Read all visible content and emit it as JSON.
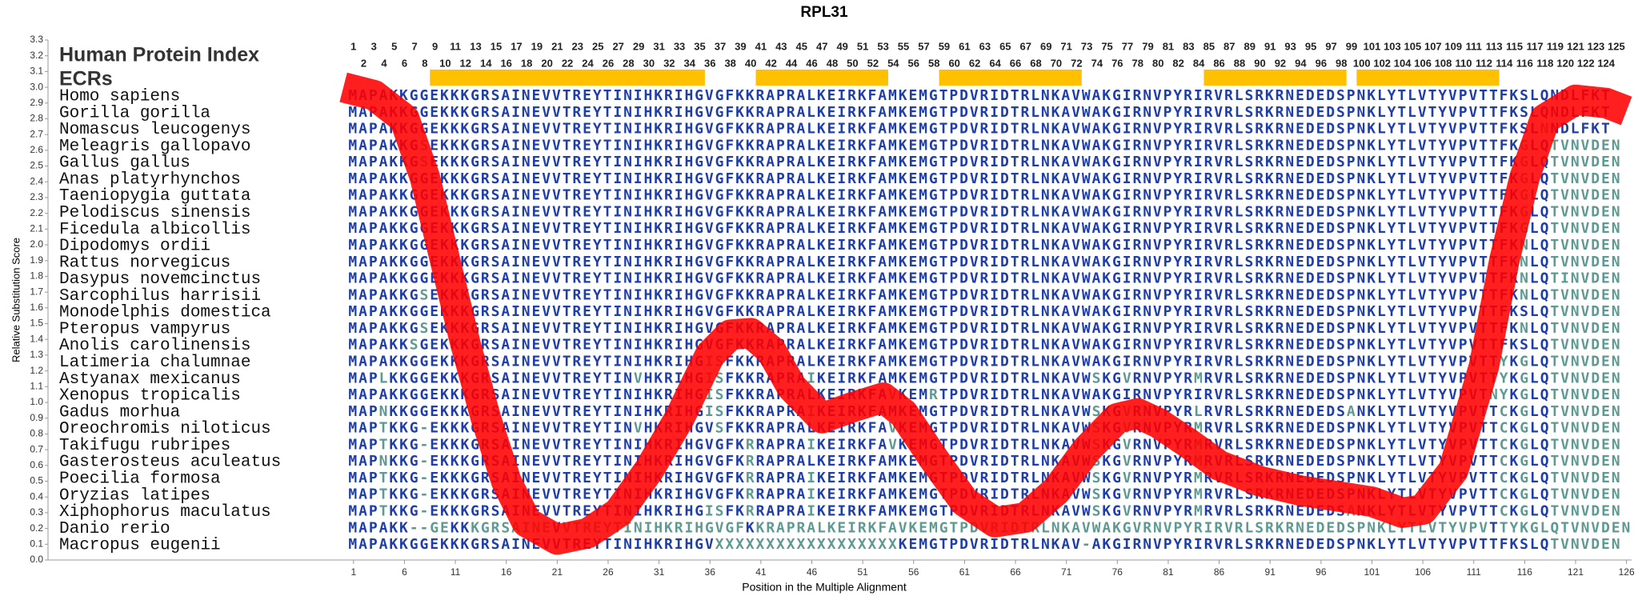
{
  "chart_data": {
    "type": "line",
    "title": "RPL31",
    "xlabel": "Position in the Multiple Alignment",
    "ylabel": "Relative Substitution Score",
    "color": "#ff0000",
    "x": [
      0,
      3,
      6,
      8,
      10,
      12,
      14,
      16,
      18,
      21,
      24,
      27,
      30,
      33,
      36,
      38,
      40,
      42,
      44,
      47,
      50,
      53,
      55,
      58,
      61,
      64,
      67,
      70,
      73,
      76,
      78,
      80,
      83,
      86,
      90,
      94,
      98,
      101,
      104,
      106,
      109,
      112,
      114,
      116,
      118,
      121,
      124,
      126
    ],
    "values": [
      3.0,
      2.95,
      2.8,
      2.43,
      1.9,
      1.37,
      0.9,
      0.5,
      0.24,
      0.13,
      0.17,
      0.3,
      0.57,
      0.9,
      1.3,
      1.43,
      1.44,
      1.33,
      1.1,
      0.9,
      0.97,
      1.03,
      0.93,
      0.64,
      0.37,
      0.24,
      0.27,
      0.44,
      0.7,
      0.9,
      0.93,
      0.87,
      0.74,
      0.6,
      0.5,
      0.44,
      0.4,
      0.37,
      0.3,
      0.32,
      0.57,
      1.23,
      1.9,
      2.43,
      2.8,
      2.92,
      2.9,
      2.85
    ],
    "xlim": [
      -29,
      126.5
    ],
    "ylim": [
      0,
      3.3
    ],
    "xticks": [
      1,
      6,
      11,
      16,
      21,
      26,
      31,
      36,
      41,
      46,
      51,
      56,
      61,
      66,
      71,
      76,
      81,
      86,
      91,
      96,
      101,
      106,
      111,
      116,
      121,
      126
    ],
    "yticks": [
      {
        "value": 0,
        "label": "0.0"
      },
      0.1,
      0.2,
      0.3,
      0.4,
      0.5,
      0.6,
      0.7,
      0.8,
      0.9,
      {
        "value": 1,
        "label": "1.0"
      },
      1.1,
      1.2,
      1.3,
      1.4,
      1.5,
      1.6,
      1.7,
      1.8,
      1.9,
      {
        "value": 2,
        "label": "2.0"
      },
      2.1,
      2.2,
      2.3,
      2.4,
      2.5,
      2.6,
      2.7,
      2.8,
      2.9,
      {
        "value": 3,
        "label": "3.0"
      },
      3.1,
      3.2,
      3.3
    ],
    "protein_index_label": "Human Protein Index",
    "protein_index": [
      1,
      2,
      3,
      4,
      5,
      6,
      7,
      8,
      9,
      10,
      11,
      12,
      13,
      14,
      15,
      16,
      17,
      18,
      19,
      20,
      21,
      22,
      23,
      24,
      25,
      26,
      27,
      28,
      29,
      30,
      31,
      32,
      33,
      34,
      35,
      36,
      37,
      38,
      39,
      40,
      41,
      42,
      43,
      44,
      45,
      46,
      47,
      48,
      49,
      50,
      51,
      52,
      53,
      54,
      55,
      56,
      57,
      58,
      59,
      60,
      61,
      62,
      63,
      64,
      65,
      66,
      67,
      68,
      69,
      70,
      71,
      72,
      73,
      74,
      75,
      76,
      77,
      78,
      79,
      80,
      81,
      82,
      83,
      84,
      85,
      86,
      87,
      88,
      89,
      90,
      91,
      92,
      93,
      94,
      95,
      96,
      97,
      98,
      99,
      100,
      101,
      102,
      103,
      104,
      105,
      106,
      107,
      108,
      109,
      110,
      111,
      112,
      113,
      114,
      115,
      116,
      117,
      118,
      119,
      120,
      121,
      122,
      123,
      124,
      125
    ],
    "ecr_label": "ECRs",
    "ecr_color": "#ffc000",
    "ecrs": [
      [
        9,
        35
      ],
      [
        41,
        53
      ],
      [
        59,
        72
      ],
      [
        85,
        98
      ],
      [
        100,
        113
      ]
    ],
    "species": [
      "Homo sapiens",
      "Gorilla gorilla",
      "Nomascus leucogenys",
      "Meleagris gallopavo",
      "Gallus gallus",
      "Anas platyrhynchos",
      "Taeniopygia guttata",
      "Pelodiscus sinensis",
      "Ficedula albicollis",
      "Dipodomys ordii",
      "Rattus norvegicus",
      "Dasypus novemcinctus",
      "Sarcophilus harrisii",
      "Monodelphis domestica",
      "Pteropus vampyrus",
      "Anolis carolinensis",
      "Latimeria chalumnae",
      "Astyanax mexicanus",
      "Xenopus tropicalis",
      "Gadus morhua",
      "Oreochromis niloticus",
      "Takifugu rubripes",
      "Gasterosteus aculeatus",
      "Poecilia formosa",
      "Oryzias latipes",
      "Xiphophorus maculatus",
      "Danio rerio",
      "Macropus eugenii"
    ],
    "alignment": [
      "MAPAKKGGEKKKGRSAINEVVTREYTINIHKRIHGVGFKKRAPRALKEIRKFAMKEMGTPDVRIDTRLNKAVWAKGIRNVPYRIRVRLSRKRNEDEDSPNKLYTLVTYVPVTTFKSLQNDLFKT",
      "MAPAKKGGEKKKGRSAINEVVTREYTINIHKRIHGVGFKKRAPRALKEIRKFAMKEMGTPDVRIDTRLNKAVWAKGIRNVPYRIRVRLSRKRNEDEDSPNKLYTLVTYVPVTTFKSLQNDLFKT",
      "MAPAKKGGEKKKGRSAINEVVTREYTINIHKRIHGVGFKKRAPRALKEIRKFAMKEMGTPDVRIDTRLNKAVWAKGIRNVPYRIRVRLSRKRNEDEDSPNKLYTLVTYVPVTTFKSLNNDLFKT",
      "MAPAKKGSEKKKGRSAINEVVTREYTINIHKRIHGVGFKKRAPRALKEIRKFAMKEMGTPDVRIDTRLNKAVWAKGIRNVPYRIRVRLSRKRNEDEDSPNKLYTLVTYVPVTTFKGLQTVNVDEN",
      "MAPAKKGSEKKKGRSAINEVVTREYTINIHKRIHGVGFKKRAPRALKEIRKFAMKEMGTPDVRIDTRLNKAVWAKGIRNVPYRIRVRLSRKRNEDEDSPNKLYTLVTYVPVTTFKGLQTVNVDEN",
      "MAPAKKGGEKKKGRSAINEVVTREYTINIHKRIHGVGFKKRAPRALKEIRKFAMKEMGTPDVRIDTRLNKAVWAKGIRNVPYRIRVRLSRKRNEDEDSPNKLYTLVTYVPVTTFKGLQTVNVDEN",
      "MAPAKKGGEKKKGRSAINEVVTREYTINIHKRIHGVGFKKRAPRALKEIRKFAMKEMGTPDVRIDTRLNKAVWAKGIRNVPYRIRVRLSRKRNEDEDSPNKLYTLVTYVPVTTFKGLQTVNVDEN",
      "MAPAKKGGEKKKGRSAINEVVTREYTINIHKRIHGVGFKKRAPRALKEIRKFAMKEMGTPDVRIDTRLNKAVWAKGIRNVPYRIRVRLSRKRNEDEDSPNKLYTLVTYVPVTTFKGLQTVNVDEN",
      "MAPAKKGGEKKKGRSAINEVVTREYTINIHKRIHGVGFKKRAPRALKEIRKFAMKEMGTPDVRIDTRLNKAVWAKGIRNVPYRIRVRLSRKRNEDEDSPNKLYTLVTYVPVTTFKGLQTVNVDEN",
      "MAPAKKGGEKKKGRSAINEVVTREYTINIHKRIHGVGFKKRAPRALKEIRKFAMKEMGTPDVRIDTRLNKAVWAKGIRNVPYRIRVRLSRKRNEDEDSPNKLYTLVTYVPVTTFKNLQTVNVDEN",
      "MAPAKKGGEKKKGRSAINEVVTREYTINIHKRIHGVGFKKRAPRALKEIRKFAMKEMGTPDVRIDTRLNKAVWAKGIRNVPYRIRVRLSRKRNEDEDSPNKLYTLVTYVPVTTFKNLQTVNVDEN",
      "MAPAKKGGEKKKGRSAINEVVTREYTINIHKRIHGVGFKKRAPRALKEIRKFAMKEMGTPDVRIDTRLNKAVWAKGIRNVPYRIRVRLSRKRNEDEDSPNKLYTLVTYVPVTTFKNLQTINVDEN",
      "MAPAKKGSEKKKGRSAINEVVTREYTINIHKRIHGVGFKKRAPRALKEIRKFAMKEMGTPDVRIDTRLNKAVWAKGIRNVPYRIRVRLSRKRNEDEDSPNKLYTLVTYVPVTTFKNLQTVNVDEN",
      "MAPAKKGGEKKKGRSAINEVVTREYTINIHKRIHGVGFKKRAPRALKEIRKFAMKEMGTPDVRIDTRLNKAVWAKGIRNVPYRIRVRLSRKRNEDEDSPNKLYTLVTYVPVTTFKSLQTVNVDEN",
      "MAPAKKGSEKKKGRSAINEVVTREYTINIHKRIHGVGFKKRAPRALKEIRKFAMKEMGTPDVRIDTRLNKAVWAKGIRNVPYRIRVRLSRKRNEDEDSPNKLYTLVTYVPVTTFKNLQTVNVDEN",
      "MAPAKKSGEKKKGRSAINEVVTREYTINIHKRIHGVGFKKRAPRALKEIRKFAMKEMGTPDVRIDTRLNKAVWAKGIRNVPYRIRVRLSRKRNEDEDSPNKLYTLVTYVPVTTFKSLQTVNVDEN",
      "MAPAKKGGEKKKGRSAINEVVTREYTINIHKRIHGISFKKRAPRALKEIRKFAMKEMGTPDVRIDTRLNKAVWAKGIRNVPYRIRVRLSRKRNEDEDSPNKLYTLVTYVPVTTYKGLQTVNVDEN",
      "MAPLKKGGEKKKGRSAINEVVTREYTINVHKRIHGISFKKRAPRAIKEIRKFAMKEMGTPDVRIDTRLNKAVWSKGVRNVPYRMRVRLSRKRNEDEDSPNKLYTLVTYVPVTTYKGLQTVNVDEN",
      "MAPAKKGGEKKKGRSAINEVVTREYTINIHKRIHGISFKKRAPRALKEIRKFAVKEMRTPDVRIDTRLNKAVWAKGIRNVPYRIRVRLSRKRNEDEDSPNKLYTLVTYVPVTNYKGLQTVNVDEN",
      "MAPNKKGGEKKKGRSAINEVVTREYTINIHKRIHGISFKKRAPRAIKEIRKFAMKEMGTPDVRIDTRLNKAVWSKGVRNVPYRLRVRLSRKRNEDEDSANKLYTLVTYVPVTTCKGLQTVNVDEN",
      "MAPTKKG-EKKKGRSAINEVVTREYTINVHKRIHGVSFKKRAPRALKEIRKFAVKEMGTPDVRIDTRLNKAVWSKGVRNVPYRMRVRLSRKRNEDEDSPNKLYTLVTYVPVTTCKGLQTVNVDEN",
      "MAPTKKG-EKKKGRSAINEVVTREYTINIHKRIHGVGFKRRAPRAIKEIRKFAVKEMGTPDVRIDTRLNKAVWSKGVRNVPYRMRVRLSRKRNEDEDSPNKLYTLVTYVPVTTCKGLQTVNVDEN",
      "MAPNKKG-EKKKGRSAINEVVTREYTINIHKRIHGVGFKRRAPRALKEIRKFAMKEMGTPDVRIDTRLNKAVWSKGVRNVPYRMRVRLSRKRNEDEDSPNKLYTLVTYVPVTTCKGLQTVNVDEN",
      "MAPTKKG-EKKKGRSAINEVVTREYTINIHKRIHGVGFKRRAPRAIKEIRKFAMKEMGTPDVRIDTRLNKAVWSKGVRNVPYRMRVRLSRKRNEDEDSPNKLYTLVTYVPVTTCKGLQTVNVDEN",
      "MAPTKKG-EKKKGRSAINEVVTREYTINIHKRIHGVGFKRRAPRAIKEIRKFAMKEMGTPDVRIDTRLNKAVWSKGVRNVPYRMRVRLSRKRNEDEDSPNKLYTLVTYVPVTTCKGLQTVNVDEN",
      "MAPTKKG-EKKKGRSAINEVVTREYTINIHKRIHGISFKRRAPRAIKEIRKFAMKEMGTPDVRIDTRLNKAVWSKGVRNVPYRMRVRLSRKRNEDEDSANKLYTLVTYVPVTTCKGLQTVNVDEN",
      "MAPAKK--GEKKKGRSAINEVVTREYTINIHKRIHGVGFKKRAPRALKEIRKFAVKEMGTPDVRIDTRLNKAVWAKGVRNVPYRIRVRLSRKRNEDEDSPNKLYTLVTYVPVTTYKGLQTVNVDEN",
      "MAPAKKGGEKKKGRSAINEVVTREYTINIHKRIHGVXXXXXXXXXXXXXXXXXXKEMGTPDVRIDTRLNKAV-AKGIRNVPYRIRVRLSRKRNEDEDSPNKLYTLVTYVPVTTFKSLQTVNVDEN"
    ]
  }
}
